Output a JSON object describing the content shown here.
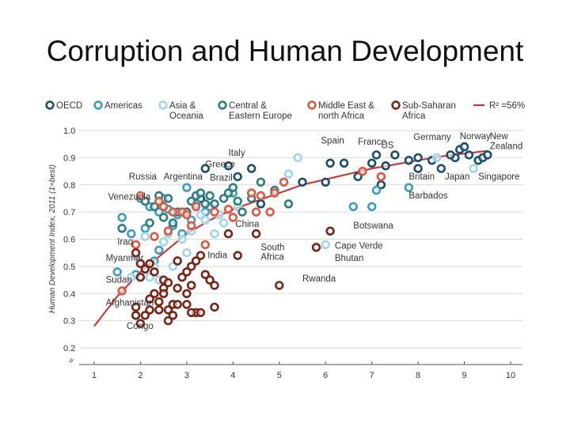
{
  "slide_title": "Corruption and Human Development",
  "chart_data": {
    "type": "scatter",
    "title": "Corruption and Human Development",
    "xlabel": "",
    "ylabel": "Human Development Index, 2011 (1=best)",
    "xlim": [
      1,
      10
    ],
    "ylim": [
      0.2,
      1.0
    ],
    "xticks": [
      "1",
      "2",
      "3",
      "4",
      "5",
      "6",
      "7",
      "8",
      "9",
      "10"
    ],
    "yticks": [
      "0.2",
      "0.3",
      "0.4",
      "0.5",
      "0.6",
      "0.7",
      "0.8",
      "0.9",
      "1.0"
    ],
    "y_axis_break": "≈",
    "grid": true,
    "legend": [
      {
        "key": "oecd",
        "label": [
          "OECD"
        ],
        "color": "#1a4f6e"
      },
      {
        "key": "americas",
        "label": [
          "Americas"
        ],
        "color": "#3a9ec2"
      },
      {
        "key": "asia",
        "label": [
          "Asia &",
          "Oceania"
        ],
        "color": "#9ed6ec"
      },
      {
        "key": "cee",
        "label": [
          "Central &",
          "Eastern Europe"
        ],
        "color": "#2a7f80"
      },
      {
        "key": "mena",
        "label": [
          "Middle East &",
          "north Africa"
        ],
        "color": "#e4553c"
      },
      {
        "key": "ssa",
        "label": [
          "Sub-Saharan",
          "Africa"
        ],
        "color": "#7b2415"
      },
      {
        "key": "trend",
        "label": [
          "R² =56%"
        ],
        "color": "#d42c2c"
      }
    ],
    "trend": {
      "r2_label": "R² =56%",
      "x": [
        1.0,
        1.5,
        2.0,
        2.5,
        3.0,
        3.5,
        4.0,
        4.5,
        5.0,
        5.5,
        6.0,
        6.5,
        7.0,
        7.5,
        8.0,
        8.5,
        9.0,
        9.5
      ],
      "y": [
        0.28,
        0.39,
        0.48,
        0.55,
        0.62,
        0.67,
        0.71,
        0.74,
        0.77,
        0.8,
        0.82,
        0.84,
        0.86,
        0.875,
        0.89,
        0.905,
        0.915,
        0.925
      ]
    },
    "series": [
      {
        "name": "OECD",
        "key": "oecd",
        "points": [
          [
            3.4,
            0.86
          ],
          [
            3.9,
            0.87
          ],
          [
            4.4,
            0.86
          ],
          [
            4.1,
            0.83
          ],
          [
            3.3,
            0.75
          ],
          [
            3.5,
            0.72
          ],
          [
            4.6,
            0.73
          ],
          [
            5.5,
            0.81
          ],
          [
            6.1,
            0.88
          ],
          [
            6.4,
            0.88
          ],
          [
            6.0,
            0.81
          ],
          [
            6.7,
            0.83
          ],
          [
            7.0,
            0.88
          ],
          [
            7.1,
            0.91
          ],
          [
            7.3,
            0.87
          ],
          [
            7.5,
            0.91
          ],
          [
            7.8,
            0.89
          ],
          [
            8.0,
            0.9
          ],
          [
            8.3,
            0.89
          ],
          [
            8.0,
            0.86
          ],
          [
            8.5,
            0.86
          ],
          [
            8.8,
            0.9
          ],
          [
            8.9,
            0.93
          ],
          [
            9.0,
            0.94
          ],
          [
            9.1,
            0.91
          ],
          [
            9.3,
            0.89
          ],
          [
            9.4,
            0.9
          ],
          [
            9.5,
            0.91
          ],
          [
            7.2,
            0.8
          ],
          [
            8.7,
            0.91
          ]
        ]
      },
      {
        "name": "Americas",
        "key": "americas",
        "points": [
          [
            1.6,
            0.68
          ],
          [
            2.0,
            0.75
          ],
          [
            2.2,
            0.72
          ],
          [
            2.4,
            0.7
          ],
          [
            2.5,
            0.75
          ],
          [
            2.6,
            0.71
          ],
          [
            2.8,
            0.69
          ],
          [
            3.0,
            0.79
          ],
          [
            3.2,
            0.73
          ],
          [
            3.5,
            0.72
          ],
          [
            2.7,
            0.65
          ],
          [
            2.9,
            0.62
          ],
          [
            1.5,
            0.48
          ],
          [
            1.9,
            0.47
          ],
          [
            2.3,
            0.52
          ],
          [
            2.1,
            0.64
          ],
          [
            3.4,
            0.7
          ],
          [
            4.0,
            0.77
          ],
          [
            6.6,
            0.72
          ],
          [
            7.0,
            0.72
          ],
          [
            7.1,
            0.78
          ],
          [
            7.8,
            0.79
          ],
          [
            1.8,
            0.62
          ],
          [
            2.4,
            0.56
          ],
          [
            3.1,
            0.67
          ]
        ]
      },
      {
        "name": "Asia & Oceania",
        "key": "asia",
        "points": [
          [
            1.8,
            0.46
          ],
          [
            2.1,
            0.61
          ],
          [
            2.3,
            0.5
          ],
          [
            2.5,
            0.59
          ],
          [
            2.6,
            0.62
          ],
          [
            2.7,
            0.5
          ],
          [
            2.9,
            0.6
          ],
          [
            3.0,
            0.55
          ],
          [
            3.1,
            0.63
          ],
          [
            3.4,
            0.67
          ],
          [
            3.6,
            0.62
          ],
          [
            3.7,
            0.69
          ],
          [
            2.2,
            0.46
          ],
          [
            2.4,
            0.45
          ],
          [
            1.9,
            0.54
          ],
          [
            5.4,
            0.9
          ],
          [
            5.2,
            0.84
          ],
          [
            6.0,
            0.58
          ],
          [
            8.4,
            0.9
          ],
          [
            9.2,
            0.86
          ],
          [
            4.1,
            0.72
          ],
          [
            2.8,
            0.52
          ],
          [
            3.3,
            0.69
          ],
          [
            3.8,
            0.66
          ]
        ]
      },
      {
        "name": "Central & Eastern Europe",
        "key": "cee",
        "points": [
          [
            2.1,
            0.74
          ],
          [
            2.3,
            0.72
          ],
          [
            2.4,
            0.76
          ],
          [
            2.6,
            0.75
          ],
          [
            2.7,
            0.66
          ],
          [
            2.8,
            0.7
          ],
          [
            3.0,
            0.7
          ],
          [
            3.1,
            0.74
          ],
          [
            3.2,
            0.76
          ],
          [
            3.3,
            0.77
          ],
          [
            3.4,
            0.73
          ],
          [
            3.6,
            0.73
          ],
          [
            3.8,
            0.75
          ],
          [
            3.9,
            0.77
          ],
          [
            4.0,
            0.79
          ],
          [
            4.1,
            0.74
          ],
          [
            4.2,
            0.7
          ],
          [
            4.4,
            0.75
          ],
          [
            4.9,
            0.78
          ],
          [
            5.2,
            0.73
          ],
          [
            2.5,
            0.68
          ],
          [
            1.6,
            0.64
          ],
          [
            2.2,
            0.66
          ],
          [
            3.5,
            0.76
          ],
          [
            4.6,
            0.81
          ]
        ]
      },
      {
        "name": "Middle East & north Africa",
        "key": "mena",
        "points": [
          [
            1.6,
            0.41
          ],
          [
            1.9,
            0.58
          ],
          [
            2.0,
            0.76
          ],
          [
            2.4,
            0.74
          ],
          [
            2.5,
            0.72
          ],
          [
            2.7,
            0.7
          ],
          [
            2.9,
            0.7
          ],
          [
            3.0,
            0.69
          ],
          [
            3.2,
            0.72
          ],
          [
            3.4,
            0.58
          ],
          [
            3.6,
            0.7
          ],
          [
            4.0,
            0.68
          ],
          [
            4.4,
            0.77
          ],
          [
            4.6,
            0.76
          ],
          [
            4.9,
            0.77
          ],
          [
            5.1,
            0.81
          ],
          [
            6.8,
            0.85
          ],
          [
            7.2,
            0.83
          ],
          [
            2.3,
            0.61
          ],
          [
            3.1,
            0.65
          ],
          [
            4.5,
            0.7
          ],
          [
            3.9,
            0.71
          ],
          [
            2.6,
            0.63
          ],
          [
            4.8,
            0.7
          ]
        ]
      },
      {
        "name": "Sub-Saharan Africa",
        "key": "ssa",
        "points": [
          [
            1.9,
            0.35
          ],
          [
            2.0,
            0.29
          ],
          [
            2.2,
            0.38
          ],
          [
            2.4,
            0.34
          ],
          [
            2.5,
            0.45
          ],
          [
            2.6,
            0.34
          ],
          [
            2.7,
            0.36
          ],
          [
            2.8,
            0.36
          ],
          [
            2.9,
            0.46
          ],
          [
            3.0,
            0.48
          ],
          [
            3.1,
            0.43
          ],
          [
            3.2,
            0.33
          ],
          [
            3.3,
            0.33
          ],
          [
            3.5,
            0.45
          ],
          [
            3.6,
            0.43
          ],
          [
            3.9,
            0.62
          ],
          [
            4.5,
            0.62
          ],
          [
            5.0,
            0.43
          ],
          [
            5.8,
            0.57
          ],
          [
            6.1,
            0.63
          ],
          [
            2.0,
            0.51
          ],
          [
            2.1,
            0.32
          ],
          [
            2.3,
            0.4
          ],
          [
            2.2,
            0.34
          ],
          [
            2.6,
            0.44
          ],
          [
            2.7,
            0.32
          ],
          [
            2.8,
            0.42
          ],
          [
            3.0,
            0.4
          ],
          [
            3.1,
            0.5
          ],
          [
            3.2,
            0.52
          ],
          [
            3.4,
            0.47
          ],
          [
            1.9,
            0.55
          ],
          [
            2.1,
            0.49
          ],
          [
            2.3,
            0.48
          ],
          [
            2.5,
            0.42
          ],
          [
            2.6,
            0.3
          ],
          [
            3.0,
            0.36
          ],
          [
            3.3,
            0.54
          ],
          [
            4.1,
            0.54
          ],
          [
            1.9,
            0.32
          ],
          [
            2.0,
            0.46
          ],
          [
            2.4,
            0.37
          ],
          [
            2.8,
            0.52
          ],
          [
            3.1,
            0.33
          ],
          [
            3.6,
            0.35
          ],
          [
            2.2,
            0.51
          ],
          [
            2.5,
            0.4
          ]
        ]
      }
    ],
    "annotations": [
      {
        "text": "Italy",
        "x": 3.9,
        "y": 0.907
      },
      {
        "text": "Greece",
        "x": 3.4,
        "y": 0.865
      },
      {
        "text": "Spain",
        "x": 5.9,
        "y": 0.952
      },
      {
        "text": "France",
        "x": 6.7,
        "y": 0.948
      },
      {
        "text": "US",
        "x": 7.2,
        "y": 0.935
      },
      {
        "text": "Germany",
        "x": 7.9,
        "y": 0.965
      },
      {
        "text": "Norway",
        "x": 8.9,
        "y": 0.968
      },
      {
        "text": "New",
        "x": 9.55,
        "y": 0.968
      },
      {
        "text": "Zealand",
        "x": 9.55,
        "y": 0.932
      },
      {
        "text": "Britain",
        "x": 7.8,
        "y": 0.82
      },
      {
        "text": "Japan",
        "x": 8.58,
        "y": 0.82
      },
      {
        "text": "Singapore",
        "x": 9.3,
        "y": 0.82
      },
      {
        "text": "Barbados",
        "x": 7.8,
        "y": 0.75
      },
      {
        "text": "Russia",
        "x": 1.75,
        "y": 0.82
      },
      {
        "text": "Argentina",
        "x": 2.5,
        "y": 0.82
      },
      {
        "text": "Brazil",
        "x": 3.5,
        "y": 0.815
      },
      {
        "text": "Venezuela",
        "x": 1.3,
        "y": 0.745
      },
      {
        "text": "China",
        "x": 4.05,
        "y": 0.645
      },
      {
        "text": "Botswana",
        "x": 6.6,
        "y": 0.64
      },
      {
        "text": "Iraq",
        "x": 1.5,
        "y": 0.58
      },
      {
        "text": "South",
        "x": 4.6,
        "y": 0.56
      },
      {
        "text": "Africa",
        "x": 4.6,
        "y": 0.525
      },
      {
        "text": "India",
        "x": 3.45,
        "y": 0.53
      },
      {
        "text": "Cape Verde",
        "x": 6.2,
        "y": 0.565
      },
      {
        "text": "Bhutan",
        "x": 6.2,
        "y": 0.52
      },
      {
        "text": "Myanmar",
        "x": 1.25,
        "y": 0.52
      },
      {
        "text": "Sudan",
        "x": 1.25,
        "y": 0.44
      },
      {
        "text": "Rwanda",
        "x": 5.5,
        "y": 0.445
      },
      {
        "text": "Afghanistan",
        "x": 1.25,
        "y": 0.355
      },
      {
        "text": "Congo",
        "x": 1.7,
        "y": 0.27
      }
    ]
  }
}
